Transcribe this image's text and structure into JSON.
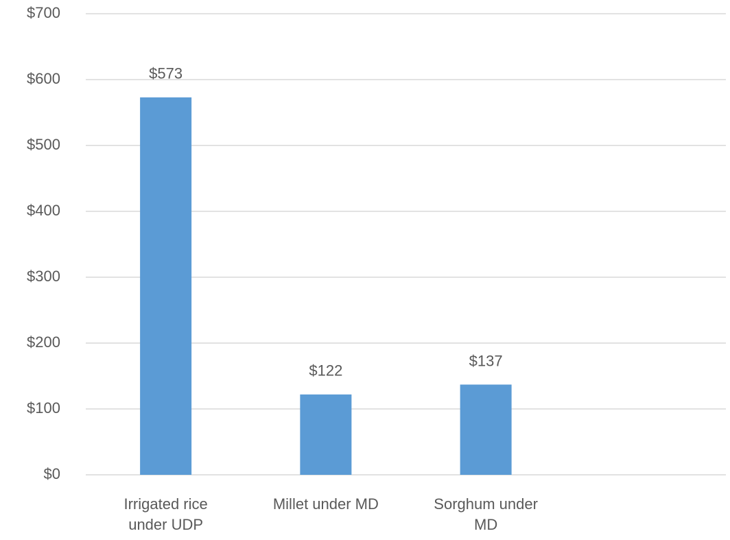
{
  "chart_data": {
    "type": "bar",
    "categories": [
      "Irrigated rice under UDP",
      "Millet under MD",
      "Sorghum under MD",
      null
    ],
    "values": [
      573,
      122,
      137,
      null
    ],
    "value_labels": [
      "$573",
      "$122",
      "$137",
      null
    ],
    "color": "#5b9bd5",
    "ylim": [
      0,
      700
    ],
    "yticks": [
      {
        "value": 0,
        "label": "$0"
      },
      {
        "value": 100,
        "label": "$100"
      },
      {
        "value": 200,
        "label": "$200"
      },
      {
        "value": 300,
        "label": "$300"
      },
      {
        "value": 400,
        "label": "$400"
      },
      {
        "value": 500,
        "label": "$500"
      },
      {
        "value": 600,
        "label": "$600"
      },
      {
        "value": 700,
        "label": "$700"
      }
    ],
    "grid": true
  }
}
